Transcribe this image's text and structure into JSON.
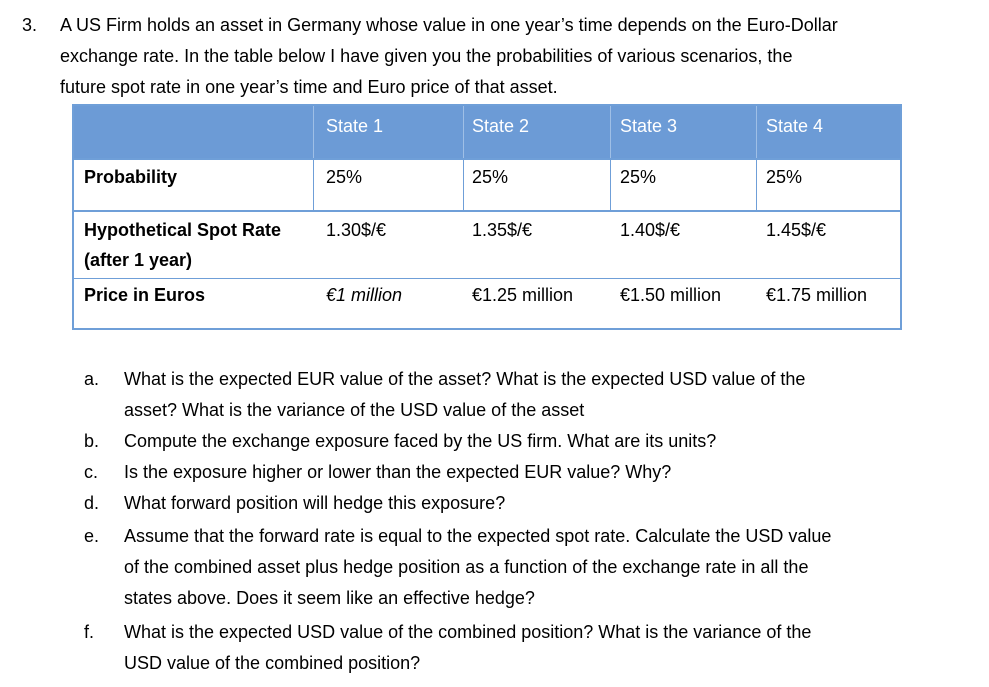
{
  "question": {
    "number": "3.",
    "intro_lines": [
      "A US Firm holds an asset in Germany whose value in one year’s time depends on the Euro-Dollar",
      "exchange rate. In the table below I have given you the probabilities of various scenarios, the",
      "future spot rate in one year’s time and Euro price of that asset."
    ]
  },
  "table": {
    "headers": [
      "State 1",
      "State 2",
      "State 3",
      "State 4"
    ],
    "rows": [
      {
        "label": "Probability",
        "values": [
          "25%",
          "25%",
          "25%",
          "25%"
        ]
      },
      {
        "label": "Hypothetical Spot Rate",
        "label2": "(after 1 year)",
        "values": [
          "1.30$/€",
          "1.35$/€",
          "1.40$/€",
          "1.45$/€"
        ]
      },
      {
        "label": "Price in Euros",
        "values": [
          "€1 million",
          "€1.25 million",
          "€1.50 million",
          "€1.75 million"
        ]
      }
    ]
  },
  "subquestions": [
    {
      "letter": "a.",
      "lines": [
        "What is the expected EUR value of the asset? What is the expected USD value of the",
        "asset? What is the variance of the USD value of the asset"
      ]
    },
    {
      "letter": "b.",
      "lines": [
        "Compute the exchange exposure faced by the US firm. What are its units?"
      ]
    },
    {
      "letter": "c.",
      "lines": [
        "Is the exposure higher or lower than the expected EUR value? Why?"
      ]
    },
    {
      "letter": "d.",
      "lines": [
        "What forward position will hedge this exposure?"
      ]
    },
    {
      "letter": "e.",
      "lines": [
        "Assume that the forward rate is equal to the expected spot rate. Calculate the USD value",
        "of the combined asset plus hedge position as a function of the exchange rate in all the",
        "states above. Does it seem like an effective hedge?"
      ]
    },
    {
      "letter": "f.",
      "lines": [
        "What is the expected USD value of the combined position? What is the variance of the",
        "USD value of the combined position?"
      ]
    }
  ],
  "colors": {
    "header_bg": "#6c9bd6",
    "border": "#6f9fd8"
  }
}
